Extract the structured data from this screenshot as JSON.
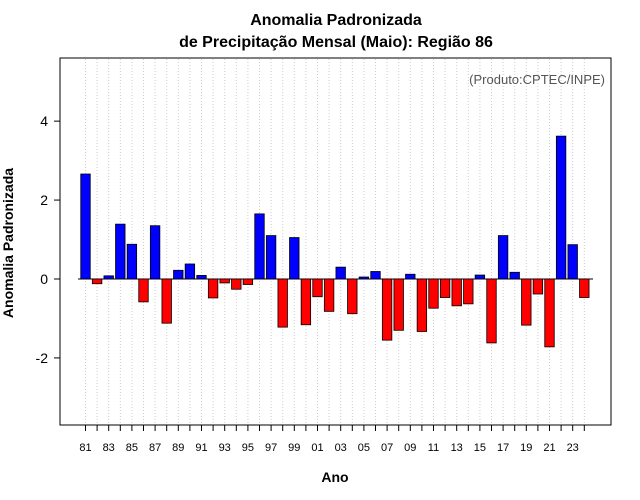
{
  "chart_data": {
    "type": "bar",
    "title_line1": "Anomalia Padronizada",
    "title_line2": "de Precipitação Mensal (Maio): Região 86",
    "credit": "(Produto:CPTEC/INPE)",
    "xlabel": "Ano",
    "ylabel": "Anomalia Padronizada",
    "ylim": [
      -3.7,
      5.6
    ],
    "yticks": [
      -2,
      0,
      2,
      4
    ],
    "grid": "vertical dotted",
    "positive_color": "#0000ff",
    "negative_color": "#ff0000",
    "categories": [
      "81",
      "82",
      "83",
      "84",
      "85",
      "86",
      "87",
      "88",
      "89",
      "90",
      "91",
      "92",
      "93",
      "94",
      "95",
      "96",
      "97",
      "98",
      "99",
      "00",
      "01",
      "02",
      "03",
      "04",
      "05",
      "06",
      "07",
      "08",
      "09",
      "10",
      "11",
      "12",
      "13",
      "14",
      "15",
      "16",
      "17",
      "18",
      "19",
      "20",
      "21",
      "22",
      "23",
      "24"
    ],
    "tick_labels": [
      "81",
      "83",
      "85",
      "87",
      "89",
      "91",
      "93",
      "95",
      "97",
      "99",
      "01",
      "03",
      "05",
      "07",
      "09",
      "11",
      "13",
      "15",
      "17",
      "19",
      "21",
      "23"
    ],
    "values": [
      2.66,
      -0.12,
      0.08,
      1.39,
      0.88,
      -0.58,
      1.35,
      -1.12,
      0.22,
      0.38,
      0.09,
      -0.48,
      -0.1,
      -0.26,
      -0.14,
      1.65,
      1.1,
      -1.22,
      1.05,
      -1.16,
      -0.45,
      -0.82,
      0.3,
      -0.88,
      0.05,
      0.19,
      -1.55,
      -1.3,
      0.12,
      -1.33,
      -0.74,
      -0.47,
      -0.68,
      -0.63,
      0.1,
      -1.62,
      1.1,
      0.17,
      -1.17,
      -0.38,
      -1.72,
      3.62,
      0.87,
      -0.47
    ]
  }
}
